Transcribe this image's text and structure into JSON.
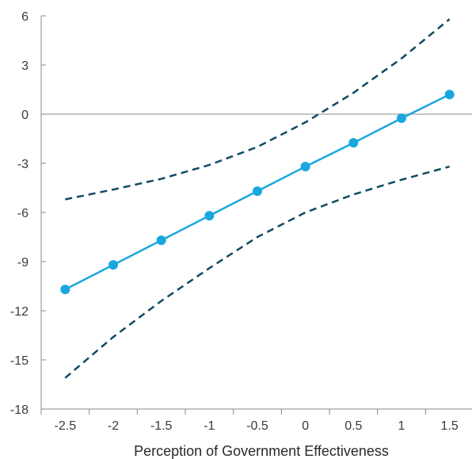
{
  "chart_data": {
    "type": "line",
    "title": "",
    "xlabel": "Perception of Government Effectiveness",
    "ylabel": "",
    "xlim": [
      -2.75,
      1.75
    ],
    "ylim": [
      -18,
      6
    ],
    "x_ticks": [
      "-2.5",
      "-2",
      "-1.5",
      "-1",
      "-0.5",
      "0",
      "0.5",
      "1",
      "1.5"
    ],
    "y_ticks": [
      "6",
      "3",
      "0",
      "-3",
      "-6",
      "-9",
      "-12",
      "-15",
      "-18"
    ],
    "grid": false,
    "legend": "none",
    "x": [
      -2.5,
      -2,
      -1.5,
      -1,
      -0.5,
      0,
      0.5,
      1,
      1.5
    ],
    "series": [
      {
        "role": "estimate",
        "style": "solid-with-markers",
        "color": "#1aa7de",
        "values": [
          -10.7,
          -9.2,
          -7.7,
          -6.2,
          -4.7,
          -3.2,
          -1.75,
          -0.25,
          1.2
        ]
      },
      {
        "role": "upper-bound",
        "style": "dashed",
        "color": "#0f4a63",
        "values": [
          -5.2,
          -4.6,
          -3.95,
          -3.1,
          -2.0,
          -0.5,
          1.3,
          3.4,
          5.8
        ]
      },
      {
        "role": "lower-bound",
        "style": "dashed",
        "color": "#0f4a63",
        "values": [
          -16.1,
          -13.6,
          -11.4,
          -9.4,
          -7.5,
          -6.0,
          -4.9,
          -4.0,
          -3.2
        ]
      }
    ]
  }
}
